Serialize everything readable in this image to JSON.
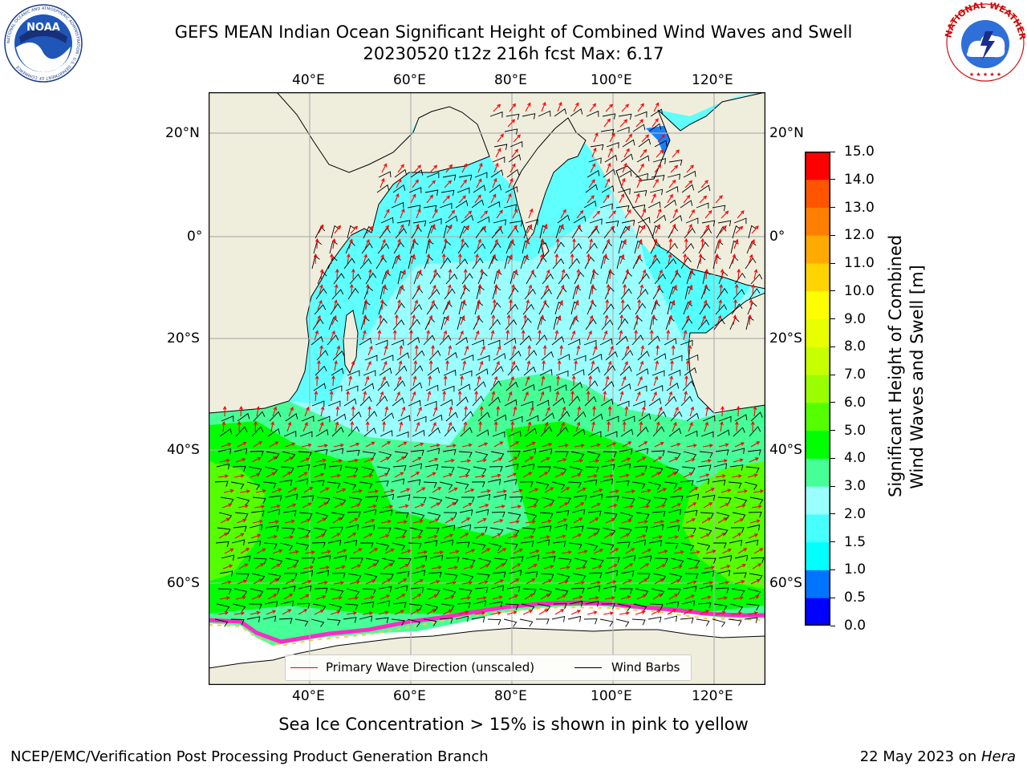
{
  "header": {
    "title_line1": "GEFS MEAN Indian Ocean Significant Height of Combined Wind Waves and Swell",
    "title_line2": "20230520 t12z 216h fcst   Max: 6.17"
  },
  "logos": {
    "left_text": "NOAA",
    "left_ring": "NATIONAL OCEANIC AND ATMOSPHERIC ADMINISTRATION · U.S. DEPARTMENT OF COMMERCE",
    "right_ring": "NATIONAL WEATHER SERVICE"
  },
  "map": {
    "lon_ticks": [
      "40°E",
      "60°E",
      "80°E",
      "100°E",
      "120°E"
    ],
    "lat_ticks": [
      "20°N",
      "0°",
      "20°S",
      "40°S",
      "60°S"
    ],
    "lon_range": [
      20,
      130
    ],
    "lat_range": [
      -72,
      28
    ],
    "colors": {
      "land": "#efeedd",
      "ice_free": "#ffffff",
      "grid": "#b0b0b0",
      "wave_arrow": "#ff0000",
      "wind_barb": "#000000"
    }
  },
  "legend": {
    "wave_label": "Primary Wave Direction (unscaled)",
    "wind_label": "Wind Barbs"
  },
  "colorbar": {
    "label_line1": "Significant Height of Combined",
    "label_line2": "Wind Waves and Swell [m]",
    "ticks": [
      "0.0",
      "0.5",
      "1.0",
      "1.5",
      "2.0",
      "3.0",
      "4.0",
      "5.0",
      "6.0",
      "7.0",
      "8.0",
      "9.0",
      "10.0",
      "11.0",
      "12.0",
      "13.0",
      "14.0",
      "15.0"
    ],
    "colors": [
      "#0000ff",
      "#0073ff",
      "#00ffff",
      "#46ffff",
      "#9affff",
      "#46ff96",
      "#00ff00",
      "#54ff00",
      "#9aff00",
      "#c8ff00",
      "#e8ff00",
      "#ffff00",
      "#ffd400",
      "#ffaa00",
      "#ff7f00",
      "#ff5500",
      "#ff0000"
    ]
  },
  "notes": {
    "sea_ice": "Sea Ice Concentration > 15% is shown in pink to yellow"
  },
  "footer": {
    "left": "NCEP/EMC/Verification Post Processing Product Generation Branch",
    "right_prefix": "22 May 2023 on ",
    "right_host": "Hera"
  }
}
